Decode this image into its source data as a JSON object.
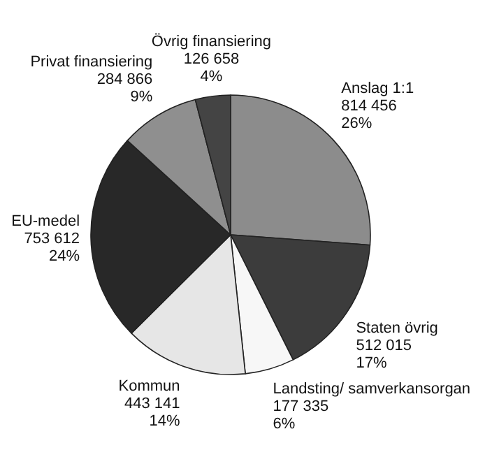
{
  "chart_data": {
    "type": "pie",
    "categories": [
      "Anslag 1:1",
      "Staten övrig",
      "Landsting/ samverkansorgan",
      "Kommun",
      "EU-medel",
      "Privat finansiering",
      "Övrig finansiering"
    ],
    "values": [
      814456,
      512015,
      177335,
      443141,
      753612,
      284866,
      126658
    ],
    "value_labels": [
      "814 456\n26%",
      "512 015\n17%",
      "177 335\n6%",
      "443 141\n14%",
      "753 612\n24%",
      "284 866\n9%",
      "126 658\n4%"
    ],
    "colors": [
      "#8c8c8c",
      "#3c3c3c",
      "#f7f7f7",
      "#e6e6e6",
      "#282828",
      "#8f8f8f",
      "#444444"
    ]
  }
}
